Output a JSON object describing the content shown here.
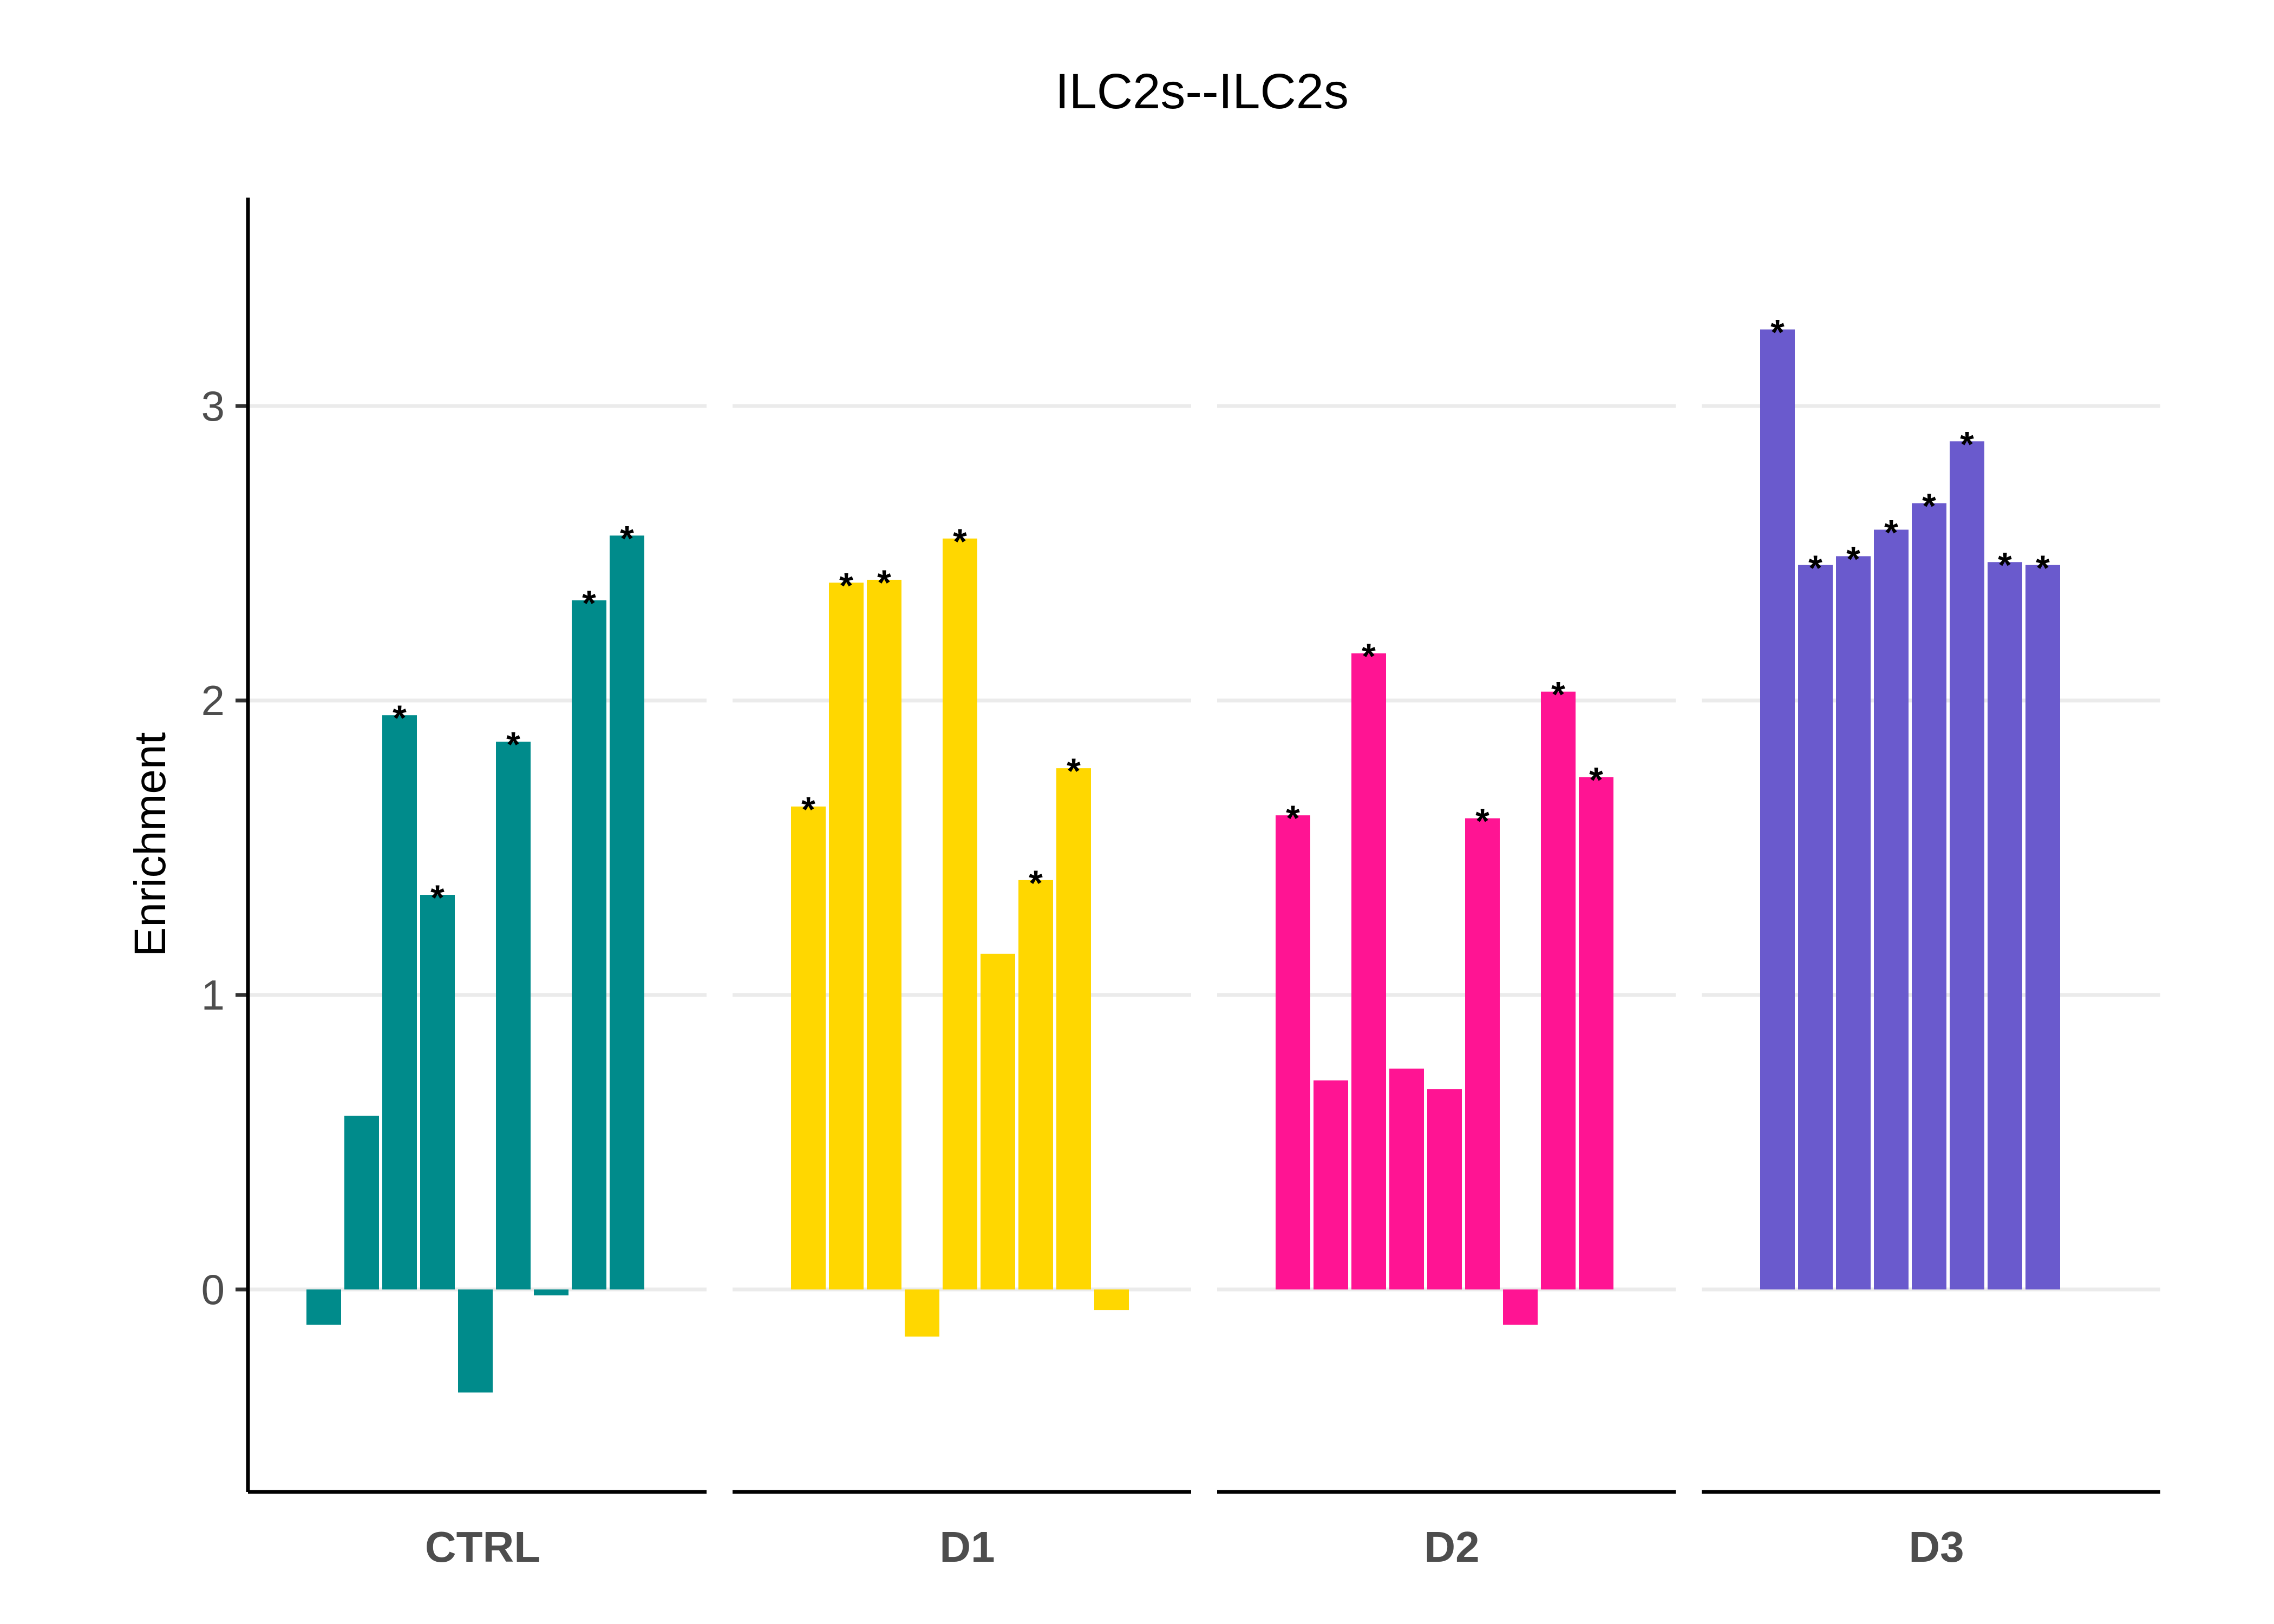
{
  "chart_data": {
    "type": "bar",
    "title": "ILC2s--ILC2s",
    "ylabel": "Enrichment",
    "xlabel": "",
    "ylim": [
      -0.7,
      3.7
    ],
    "yticks": [
      0,
      1,
      2,
      3
    ],
    "grid": "horizontal major",
    "legend": "none",
    "panels": [
      {
        "name": "CTRL",
        "color": "#008B8B",
        "values": [
          -0.12,
          0.59,
          1.95,
          1.34,
          -0.35,
          1.86,
          -0.02,
          2.34,
          2.56
        ],
        "significant": [
          false,
          false,
          true,
          true,
          false,
          true,
          false,
          true,
          true
        ]
      },
      {
        "name": "D1",
        "color": "#FFD700",
        "values": [
          1.64,
          2.4,
          2.41,
          -0.16,
          2.55,
          1.14,
          1.39,
          1.77,
          -0.07
        ],
        "significant": [
          true,
          true,
          true,
          false,
          true,
          false,
          true,
          true,
          false
        ]
      },
      {
        "name": "D2",
        "color": "#FF1493",
        "values": [
          1.61,
          0.71,
          2.16,
          0.75,
          0.68,
          1.6,
          -0.12,
          2.03,
          1.74
        ],
        "significant": [
          true,
          false,
          true,
          false,
          false,
          true,
          false,
          true,
          true
        ]
      },
      {
        "name": "D3",
        "color": "#6A5ACD",
        "values": [
          3.26,
          2.46,
          2.49,
          2.58,
          2.67,
          2.88,
          2.47,
          2.46
        ],
        "significant": [
          true,
          true,
          true,
          true,
          true,
          true,
          true,
          true
        ]
      }
    ],
    "significance_marker": "*"
  }
}
